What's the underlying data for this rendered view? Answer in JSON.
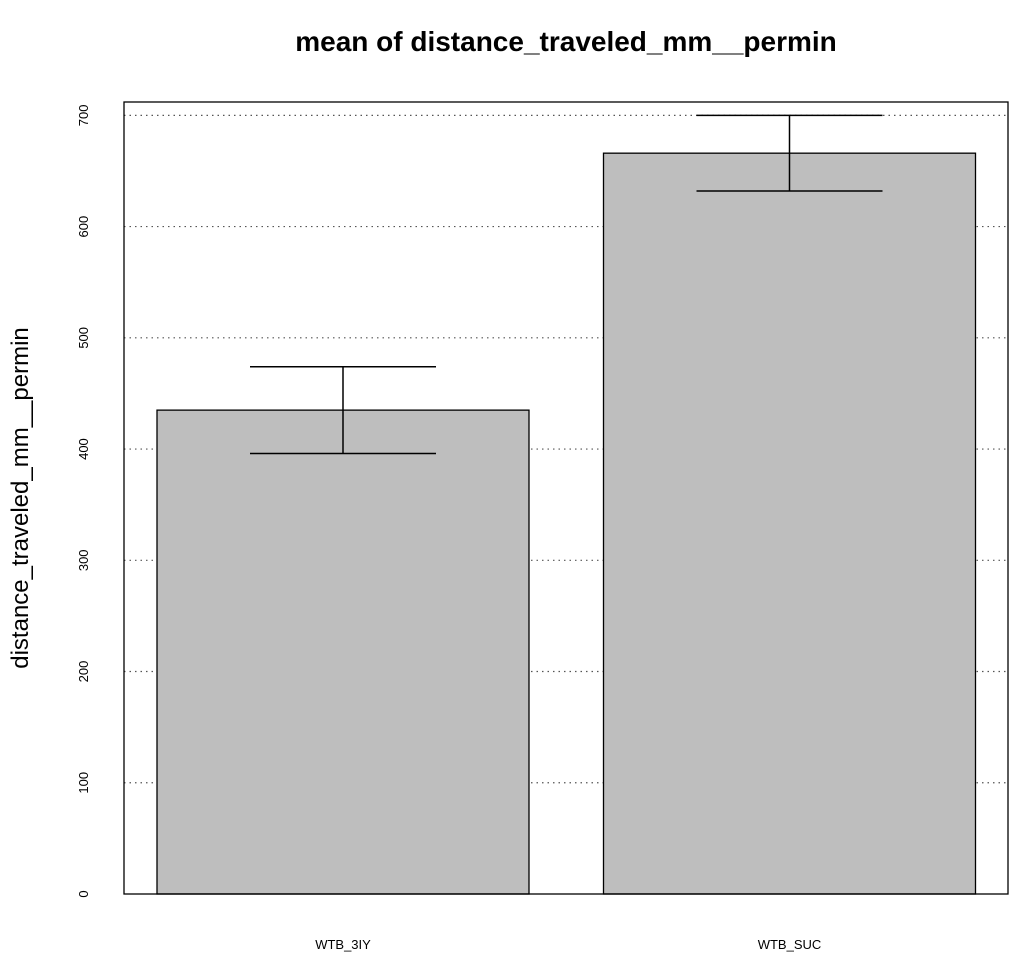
{
  "chart_data": {
    "type": "bar",
    "title": "mean of  distance_traveled_mm__permin",
    "xlabel": "",
    "ylabel": "distance_traveled_mm__permin",
    "categories": [
      "WTB_3IY",
      "WTB_SUC"
    ],
    "values": [
      435,
      666
    ],
    "error_bars": [
      {
        "lower": 396,
        "upper": 474
      },
      {
        "lower": 632,
        "upper": 700
      }
    ],
    "ylim": [
      0,
      712
    ],
    "yticks": [
      0,
      100,
      200,
      300,
      400,
      500,
      600,
      700
    ],
    "grid": "horizontal-dotted",
    "legend": "none",
    "colors": {
      "bar_fill": "#bebebe",
      "bar_stroke": "#000000",
      "grid": "#555555"
    }
  }
}
